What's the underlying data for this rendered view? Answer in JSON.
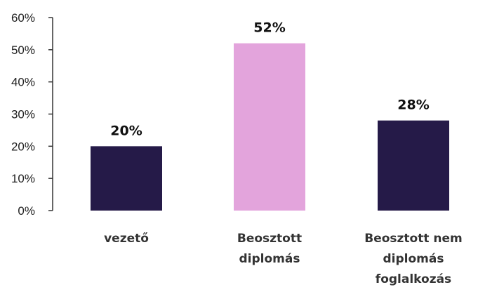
{
  "chart_data": {
    "type": "bar",
    "categories": [
      [
        "vezető"
      ],
      [
        "Beosztott",
        "diplomás"
      ],
      [
        "Beosztott nem",
        "diplomás",
        "foglalkozás"
      ]
    ],
    "values": [
      20,
      52,
      28
    ],
    "value_labels": [
      "20%",
      "52%",
      "28%"
    ],
    "bar_colors": [
      "#251a48",
      "#e3a4dc",
      "#251a48"
    ],
    "ylim": [
      0,
      60
    ],
    "yticks": [
      0,
      10,
      20,
      30,
      40,
      50,
      60
    ],
    "ytick_labels": [
      "0%",
      "10%",
      "20%",
      "30%",
      "40%",
      "50%",
      "60%"
    ],
    "title": "",
    "xlabel": "",
    "ylabel": "",
    "grid": false,
    "legend": "none"
  }
}
